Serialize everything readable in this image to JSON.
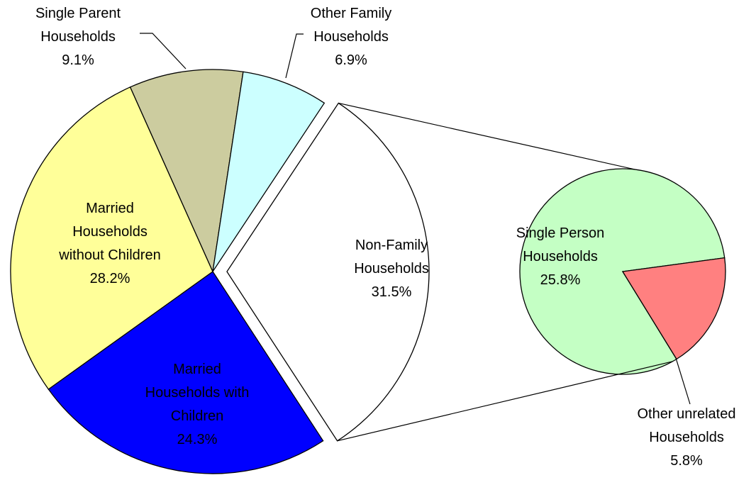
{
  "chart_data": {
    "type": "pie-of-pie",
    "categories": [
      "Non-Family Households",
      "Married Households with Children",
      "Married Households without Children",
      "Single Parent Households",
      "Other Family Households"
    ],
    "values": [
      31.5,
      24.3,
      28.2,
      9.1,
      6.9
    ],
    "value_labels": [
      "31.5%",
      "24.3%",
      "28.2%",
      "9.1%",
      "6.9%"
    ],
    "colors": [
      "#ffffff",
      "#0000ff",
      "#ffff99",
      "#cccc9f",
      "#ccffff"
    ],
    "secondary": {
      "categories": [
        "Single Person Households",
        "Other unrelated Households"
      ],
      "values": [
        25.8,
        5.8
      ],
      "value_labels": [
        "25.8%",
        "5.8%"
      ],
      "colors": [
        "#c4ffc4",
        "#ff8080"
      ]
    }
  }
}
